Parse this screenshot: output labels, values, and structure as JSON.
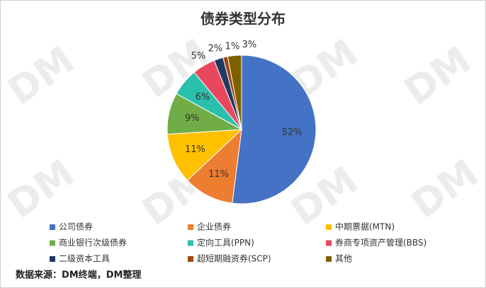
{
  "chart_data": {
    "type": "pie",
    "title": "债券类型分布",
    "categories": [
      "公司债券",
      "企业债券",
      "中期票据(MTN)",
      "商业银行次级债券",
      "定向工具(PPN)",
      "券商专项资产管理(BBS)",
      "二级资本工具",
      "超短期融资券(SCP)",
      "其他"
    ],
    "values": [
      52,
      11,
      11,
      9,
      6,
      5,
      2,
      1,
      3
    ],
    "value_labels": [
      "52%",
      "11%",
      "11%",
      "9%",
      "6%",
      "5%",
      "2%",
      "1%",
      "3%"
    ],
    "colors": [
      "#4472c4",
      "#ed7d31",
      "#ffc000",
      "#70ad47",
      "#2bbfae",
      "#e8485e",
      "#203864",
      "#9e480e",
      "#7f6000"
    ],
    "watermark": "DM",
    "source": "数据来源：DM终端，DM整理"
  }
}
